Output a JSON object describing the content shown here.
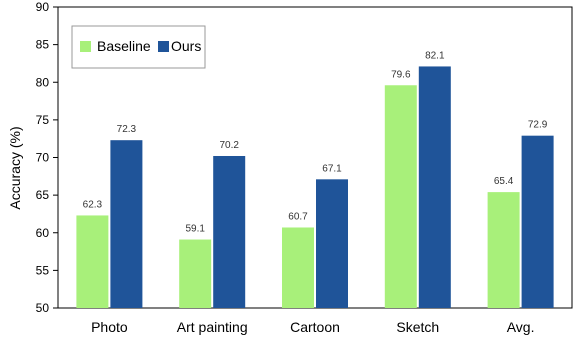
{
  "chart_data": {
    "type": "bar",
    "categories": [
      "Photo",
      "Art painting",
      "Cartoon",
      "Sketch",
      "Avg."
    ],
    "series": [
      {
        "name": "Baseline",
        "values": [
          62.3,
          59.1,
          60.7,
          79.6,
          65.4
        ],
        "color": "#a8f07a"
      },
      {
        "name": "Ours",
        "values": [
          72.3,
          70.2,
          67.1,
          82.1,
          72.9
        ],
        "color": "#1f5499"
      }
    ],
    "ylabel": "Accuracy (%)",
    "xlabel": "",
    "ylim": [
      50,
      90
    ],
    "yticks": [
      50,
      55,
      60,
      65,
      70,
      75,
      80,
      85,
      90
    ],
    "grid": false,
    "legend_position": "top-left"
  }
}
